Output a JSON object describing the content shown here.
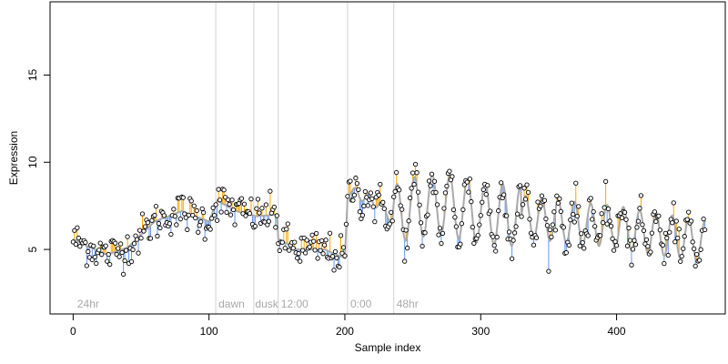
{
  "chart_data": {
    "type": "scatter",
    "xlabel": "Sample index",
    "ylabel": "Expression",
    "xlim": [
      -17,
      480
    ],
    "ylim": [
      1.3,
      19.2
    ],
    "x_ticks": [
      0,
      100,
      200,
      300,
      400
    ],
    "y_ticks": [
      5,
      10,
      15
    ],
    "grid": false,
    "region_boundaries": [
      105,
      133,
      151,
      202,
      236
    ],
    "region_labels": [
      {
        "x": 3,
        "text": "24hr"
      },
      {
        "x": 107,
        "text": "dawn"
      },
      {
        "x": 134,
        "text": "dusk"
      },
      {
        "x": 153,
        "text": "12:00"
      },
      {
        "x": 204,
        "text": "0:00"
      },
      {
        "x": 238,
        "text": "48hr"
      }
    ],
    "colors": {
      "above_fit": "#ffa500",
      "below_fit": "#6495ed",
      "fit_line": "#a9a9a9",
      "boundary": "#d3d3d3",
      "points": "#000000",
      "region_label": "#a8a8a8"
    },
    "fit_anchors": {
      "x": [
        0,
        10,
        25,
        40,
        60,
        80,
        100,
        106,
        120,
        135,
        150,
        151,
        165,
        185,
        200,
        202,
        205,
        215,
        225,
        235,
        240,
        250,
        270,
        300,
        330,
        360,
        400,
        430,
        466
      ],
      "y": [
        5.6,
        5.2,
        4.7,
        5.1,
        6.6,
        7.2,
        6.6,
        7.8,
        7.2,
        6.9,
        7.0,
        5.6,
        5.0,
        5.0,
        4.5,
        8.0,
        8.3,
        8.0,
        7.6,
        6.8,
        7.1,
        7.4,
        7.6,
        7.1,
        6.9,
        6.6,
        6.3,
        5.9,
        5.4
      ]
    },
    "fit_oscillation": [
      {
        "from": 205,
        "to": 235,
        "period": 10,
        "amplitude": 0.3
      },
      {
        "from": 235,
        "to": 330,
        "period": 13,
        "amplitude": 1.75
      },
      {
        "from": 330,
        "to": 466,
        "period": 12,
        "amplitude": 1.2
      }
    ],
    "n_points": 466,
    "noise_sd": 0.55
  }
}
